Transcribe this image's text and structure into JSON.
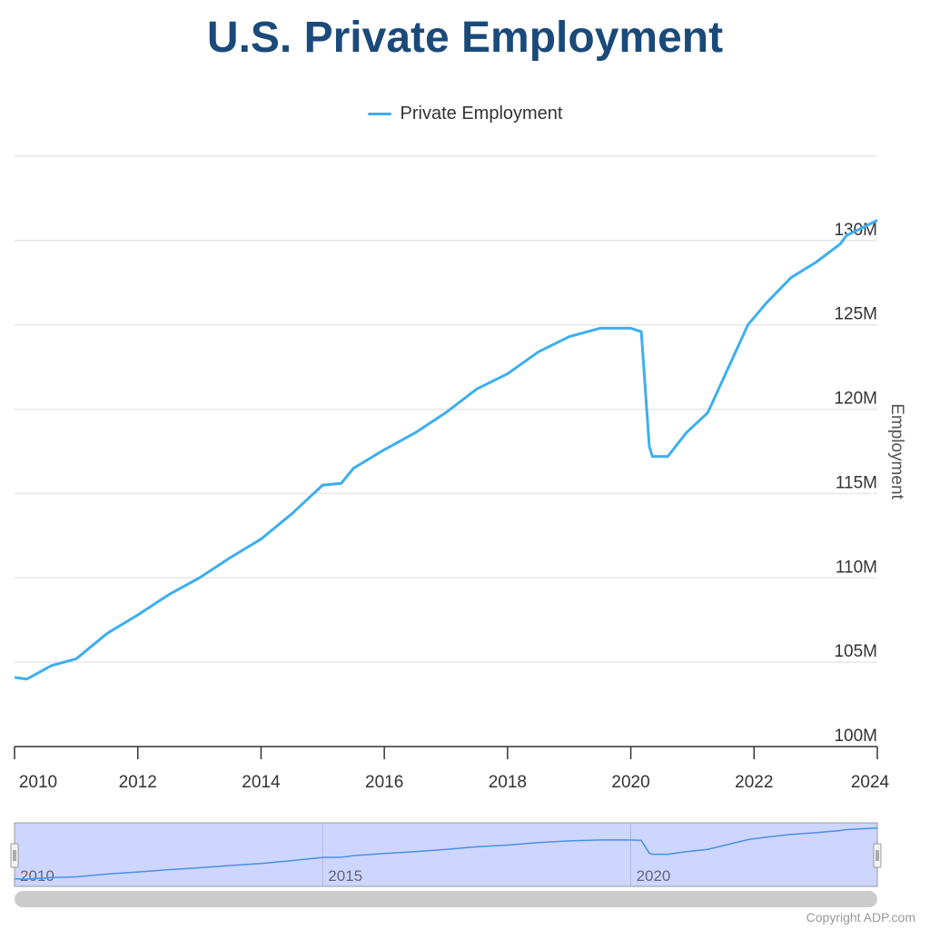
{
  "title": "U.S. Private Employment",
  "copyright": "Copyright ADP.com",
  "colors": {
    "series": "#3daef0",
    "title": "#1a4a7a",
    "navigator_fill": "#ccd6ff"
  },
  "chart_data": {
    "type": "line",
    "title": "U.S. Private Employment",
    "xlabel": "",
    "ylabel": "Employment",
    "xlim": [
      2010,
      2024
    ],
    "ylim": [
      100,
      135
    ],
    "grid": true,
    "legend": "top-center",
    "x_ticks": [
      "2010",
      "2012",
      "2014",
      "2016",
      "2018",
      "2020",
      "2022",
      "2024"
    ],
    "y_ticks": [
      "100M",
      "105M",
      "110M",
      "115M",
      "120M",
      "125M",
      "130M"
    ],
    "navigator_ticks": [
      "2010",
      "2015",
      "2020"
    ],
    "series": [
      {
        "name": "Private Employment",
        "unit": "millions",
        "x": [
          2010.0,
          2010.2,
          2010.4,
          2010.6,
          2011.0,
          2011.2,
          2011.5,
          2012.0,
          2012.5,
          2013.0,
          2013.5,
          2014.0,
          2014.5,
          2015.0,
          2015.3,
          2015.5,
          2016.0,
          2016.5,
          2017.0,
          2017.5,
          2018.0,
          2018.5,
          2019.0,
          2019.5,
          2020.0,
          2020.17,
          2020.3,
          2020.35,
          2020.6,
          2020.9,
          2021.25,
          2021.5,
          2021.9,
          2022.2,
          2022.6,
          2023.0,
          2023.4,
          2023.5,
          2024.0
        ],
        "values": [
          104.1,
          104.0,
          104.4,
          104.8,
          105.2,
          105.8,
          106.7,
          107.8,
          109.0,
          110.0,
          111.2,
          112.3,
          113.8,
          115.5,
          115.6,
          116.5,
          117.6,
          118.6,
          119.8,
          121.2,
          122.1,
          123.4,
          124.3,
          124.8,
          124.8,
          124.6,
          117.8,
          117.2,
          117.2,
          118.6,
          119.8,
          121.8,
          125.0,
          126.3,
          127.8,
          128.7,
          129.8,
          130.3,
          131.2
        ]
      }
    ]
  }
}
